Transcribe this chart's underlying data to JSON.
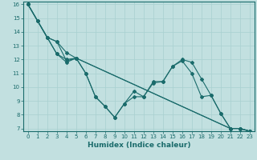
{
  "xlabel": "Humidex (Indice chaleur)",
  "background_color": "#c2e0e0",
  "line_color": "#1a6b6b",
  "grid_color": "#a8d0d0",
  "xlim": [
    -0.5,
    23.5
  ],
  "ylim": [
    6.8,
    16.2
  ],
  "yticks": [
    7,
    8,
    9,
    10,
    11,
    12,
    13,
    14,
    15,
    16
  ],
  "xticks": [
    0,
    1,
    2,
    3,
    4,
    5,
    6,
    7,
    8,
    9,
    10,
    11,
    12,
    13,
    14,
    15,
    16,
    17,
    18,
    19,
    20,
    21,
    22,
    23
  ],
  "lines": [
    {
      "x": [
        0,
        1,
        2,
        3,
        4,
        5,
        21,
        22,
        23
      ],
      "y": [
        16.0,
        14.8,
        13.6,
        13.3,
        12.5,
        12.1,
        7.0,
        7.0,
        6.8
      ],
      "has_markers": false
    },
    {
      "x": [
        0,
        1,
        2,
        3,
        4,
        5,
        6,
        7,
        8,
        9,
        10,
        11,
        12,
        13,
        14,
        15,
        16,
        17,
        18,
        19,
        20,
        21,
        22,
        23
      ],
      "y": [
        16.0,
        14.8,
        13.6,
        12.4,
        12.0,
        12.1,
        11.0,
        9.3,
        8.6,
        7.8,
        8.8,
        9.7,
        9.3,
        10.3,
        10.4,
        11.5,
        12.0,
        11.8,
        10.6,
        9.4,
        8.1,
        7.0,
        7.0,
        6.8
      ],
      "has_markers": true
    },
    {
      "x": [
        0,
        3,
        4,
        5,
        6,
        7,
        8,
        9,
        10,
        11,
        12,
        13,
        14,
        15,
        16,
        17,
        18,
        19,
        20,
        21,
        22,
        23
      ],
      "y": [
        16.0,
        12.4,
        11.8,
        12.1,
        11.0,
        9.3,
        8.6,
        7.8,
        8.8,
        9.3,
        9.3,
        10.4,
        10.4,
        11.5,
        11.9,
        11.0,
        9.3,
        9.4,
        8.1,
        7.0,
        7.0,
        6.8
      ],
      "has_markers": true
    },
    {
      "x": [
        0,
        1,
        2,
        3,
        4,
        5,
        21,
        22,
        23
      ],
      "y": [
        16.0,
        14.8,
        13.6,
        13.3,
        11.9,
        12.1,
        7.0,
        7.0,
        6.8
      ],
      "has_markers": false
    }
  ],
  "marker": "D",
  "marker_size": 2.0,
  "line_width": 0.8,
  "tick_fontsize": 5.0,
  "xlabel_fontsize": 6.5
}
